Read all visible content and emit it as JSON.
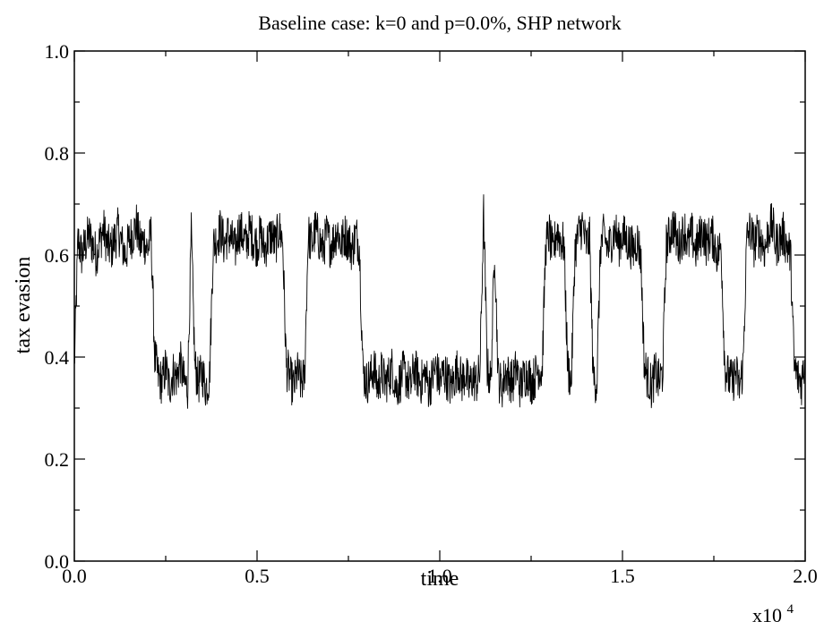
{
  "chart_data": {
    "type": "line",
    "title": "Baseline case: k=0 and p=0.0%, SHP network",
    "xlabel": "time",
    "ylabel": "tax evasion",
    "x_multiplier_label": "x10",
    "x_multiplier_exponent": "4",
    "xlim": [
      0.0,
      2.0
    ],
    "ylim": [
      0.0,
      1.0
    ],
    "x_ticks": [
      "0.0",
      "0.5",
      "1.0",
      "1.5",
      "2.0"
    ],
    "y_ticks": [
      "0.0",
      "0.2",
      "0.4",
      "0.6",
      "0.8",
      "1.0"
    ],
    "grid": false,
    "series": [
      {
        "color": "#000000",
        "x_start": 0.0,
        "x_step": 0.01,
        "values": [
          0.38,
          0.63,
          0.6,
          0.62,
          0.64,
          0.62,
          0.6,
          0.63,
          0.65,
          0.62,
          0.61,
          0.63,
          0.65,
          0.62,
          0.6,
          0.63,
          0.64,
          0.66,
          0.62,
          0.63,
          0.61,
          0.64,
          0.4,
          0.36,
          0.35,
          0.38,
          0.34,
          0.37,
          0.36,
          0.39,
          0.35,
          0.34,
          0.64,
          0.38,
          0.35,
          0.37,
          0.34,
          0.36,
          0.62,
          0.63,
          0.65,
          0.62,
          0.64,
          0.63,
          0.61,
          0.65,
          0.64,
          0.62,
          0.65,
          0.63,
          0.62,
          0.64,
          0.61,
          0.63,
          0.64,
          0.62,
          0.65,
          0.63,
          0.38,
          0.36,
          0.34,
          0.37,
          0.35,
          0.36,
          0.64,
          0.62,
          0.65,
          0.63,
          0.61,
          0.64,
          0.62,
          0.63,
          0.65,
          0.62,
          0.64,
          0.63,
          0.61,
          0.64,
          0.62,
          0.37,
          0.35,
          0.36,
          0.38,
          0.34,
          0.37,
          0.35,
          0.36,
          0.38,
          0.34,
          0.35,
          0.37,
          0.36,
          0.34,
          0.38,
          0.36,
          0.35,
          0.37,
          0.34,
          0.36,
          0.38,
          0.35,
          0.37,
          0.36,
          0.34,
          0.36,
          0.38,
          0.35,
          0.37,
          0.34,
          0.36,
          0.35,
          0.37,
          0.68,
          0.38,
          0.35,
          0.62,
          0.36,
          0.34,
          0.37,
          0.36,
          0.35,
          0.38,
          0.34,
          0.36,
          0.37,
          0.35,
          0.36,
          0.38,
          0.37,
          0.62,
          0.64,
          0.6,
          0.65,
          0.63,
          0.62,
          0.38,
          0.35,
          0.61,
          0.64,
          0.66,
          0.62,
          0.63,
          0.36,
          0.35,
          0.62,
          0.64,
          0.61,
          0.63,
          0.65,
          0.62,
          0.64,
          0.63,
          0.62,
          0.61,
          0.63,
          0.6,
          0.38,
          0.36,
          0.34,
          0.37,
          0.35,
          0.37,
          0.62,
          0.64,
          0.66,
          0.62,
          0.63,
          0.65,
          0.62,
          0.64,
          0.61,
          0.63,
          0.65,
          0.62,
          0.64,
          0.63,
          0.6,
          0.62,
          0.38,
          0.36,
          0.35,
          0.37,
          0.34,
          0.38,
          0.63,
          0.65,
          0.62,
          0.64,
          0.63,
          0.61,
          0.65,
          0.66,
          0.62,
          0.63,
          0.64,
          0.62,
          0.6,
          0.38,
          0.36,
          0.35,
          0.4
        ]
      }
    ]
  }
}
